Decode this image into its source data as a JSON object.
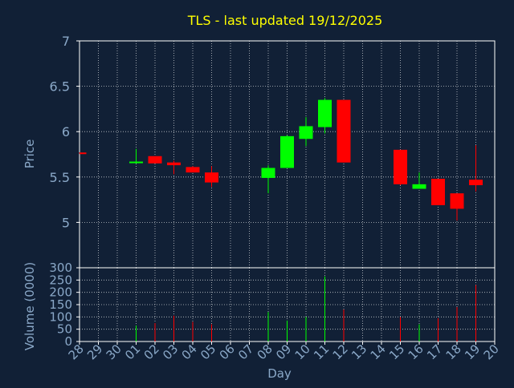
{
  "title": "TLS - last updated 19/12/2025",
  "colors": {
    "background": "#112036",
    "title": "#ffff00",
    "axis_text": "#8aa8c8",
    "up": "#00ff00",
    "down": "#ff0000",
    "grid": "#ffffff"
  },
  "chart_data": [
    {
      "type": "candlestick",
      "title": "TLS - last updated 19/12/2025",
      "ylabel": "Price",
      "ylim": [
        4.5,
        7
      ],
      "yticks": [
        "5",
        "5.5",
        "6",
        "6.5",
        "7"
      ],
      "grid": true,
      "x_ticks": [
        "28",
        "29",
        "30",
        "01",
        "02",
        "03",
        "04",
        "05",
        "06",
        "07",
        "08",
        "09",
        "10",
        "11",
        "12",
        "13",
        "14",
        "15",
        "16",
        "17",
        "18",
        "19",
        "20"
      ],
      "candles": [
        {
          "day": "28",
          "open": 5.77,
          "high": 5.77,
          "low": 5.76,
          "close": 5.76
        },
        {
          "day": "01",
          "open": 5.66,
          "high": 5.81,
          "low": 5.65,
          "close": 5.67
        },
        {
          "day": "02",
          "open": 5.73,
          "high": 5.73,
          "low": 5.65,
          "close": 5.65
        },
        {
          "day": "03",
          "open": 5.66,
          "high": 5.68,
          "low": 5.53,
          "close": 5.63
        },
        {
          "day": "04",
          "open": 5.61,
          "high": 5.62,
          "low": 5.55,
          "close": 5.55
        },
        {
          "day": "05",
          "open": 5.55,
          "high": 5.62,
          "low": 5.39,
          "close": 5.44
        },
        {
          "day": "08",
          "open": 5.49,
          "high": 5.63,
          "low": 5.32,
          "close": 5.6
        },
        {
          "day": "09",
          "open": 5.6,
          "high": 5.96,
          "low": 5.6,
          "close": 5.95
        },
        {
          "day": "10",
          "open": 5.92,
          "high": 6.16,
          "low": 5.84,
          "close": 6.06
        },
        {
          "day": "11",
          "open": 6.05,
          "high": 6.37,
          "low": 5.98,
          "close": 6.35
        },
        {
          "day": "12",
          "open": 6.35,
          "high": 6.35,
          "low": 5.66,
          "close": 5.66
        },
        {
          "day": "15",
          "open": 5.8,
          "high": 5.8,
          "low": 5.41,
          "close": 5.42
        },
        {
          "day": "16",
          "open": 5.37,
          "high": 5.55,
          "low": 5.37,
          "close": 5.42
        },
        {
          "day": "17",
          "open": 5.48,
          "high": 5.48,
          "low": 5.19,
          "close": 5.19
        },
        {
          "day": "18",
          "open": 5.32,
          "high": 5.32,
          "low": 5.02,
          "close": 5.15
        },
        {
          "day": "19",
          "open": 5.47,
          "high": 5.85,
          "low": 5.34,
          "close": 5.41
        }
      ]
    },
    {
      "type": "bar",
      "ylabel": "Volume (0000)",
      "xlabel": "Day",
      "ylim": [
        0,
        300
      ],
      "yticks": [
        "0",
        "50",
        "100",
        "150",
        "200",
        "250",
        "300"
      ],
      "grid": true,
      "volumes": [
        {
          "day": "01",
          "value": 65,
          "direction": "up"
        },
        {
          "day": "02",
          "value": 75,
          "direction": "down"
        },
        {
          "day": "03",
          "value": 105,
          "direction": "down"
        },
        {
          "day": "04",
          "value": 80,
          "direction": "down"
        },
        {
          "day": "05",
          "value": 70,
          "direction": "down"
        },
        {
          "day": "08",
          "value": 120,
          "direction": "up"
        },
        {
          "day": "09",
          "value": 85,
          "direction": "up"
        },
        {
          "day": "10",
          "value": 100,
          "direction": "up"
        },
        {
          "day": "11",
          "value": 265,
          "direction": "up"
        },
        {
          "day": "12",
          "value": 130,
          "direction": "down"
        },
        {
          "day": "15",
          "value": 100,
          "direction": "down"
        },
        {
          "day": "16",
          "value": 70,
          "direction": "up"
        },
        {
          "day": "17",
          "value": 95,
          "direction": "down"
        },
        {
          "day": "18",
          "value": 140,
          "direction": "down"
        },
        {
          "day": "19",
          "value": 230,
          "direction": "down"
        }
      ]
    }
  ]
}
